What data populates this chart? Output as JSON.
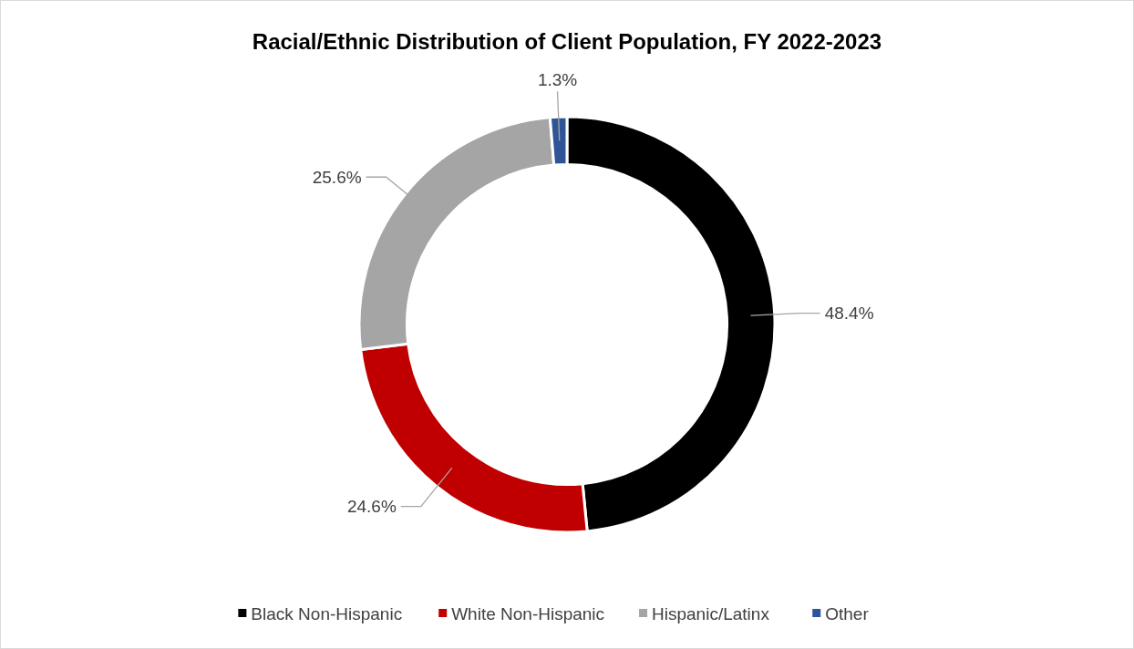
{
  "chart_data": {
    "type": "donut",
    "title": "Racial/Ethnic Distribution of Client Population, FY 2022-2023",
    "categories": [
      "Black Non-Hispanic",
      "White Non-Hispanic",
      "Hispanic/Latinx",
      "Other"
    ],
    "values": [
      48.4,
      24.6,
      25.6,
      1.3
    ],
    "value_labels": [
      "48.4%",
      "24.6%",
      "25.6%",
      "1.3%"
    ],
    "colors": [
      "#000000",
      "#c00000",
      "#a5a5a5",
      "#2f5597"
    ],
    "legend": "bottom"
  }
}
